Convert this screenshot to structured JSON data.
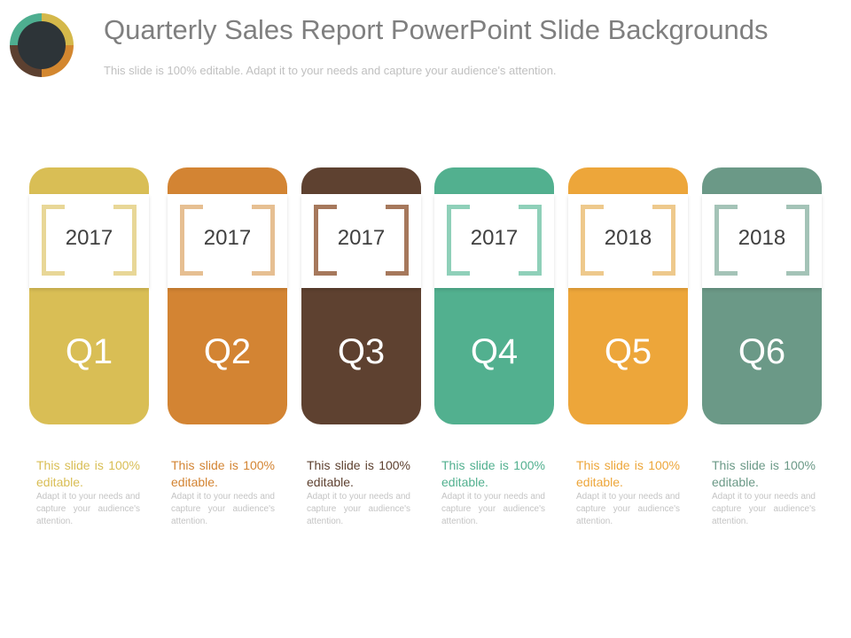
{
  "header": {
    "title": "Quarterly Sales Report PowerPoint Slide Backgrounds",
    "subtitle": "This slide is 100% editable. Adapt it to your needs and capture your audience's attention."
  },
  "logo": {
    "icon": "ring-logo-icon",
    "colors": [
      "#d4b84a",
      "#d3872f",
      "#5c4030",
      "#4eae90"
    ]
  },
  "cards": [
    {
      "quarter": "Q1",
      "year": "2017",
      "color": "#d9be55",
      "bracket_color": "#e8d797",
      "desc_lead": "This slide is 100% editable.",
      "desc_body": "Adapt it to your needs and capture your audience's attention.",
      "desc_color": "#d9be55"
    },
    {
      "quarter": "Q2",
      "year": "2017",
      "color": "#d38433",
      "bracket_color": "#e6bf92",
      "desc_lead": "This slide is 100% editable.",
      "desc_body": "Adapt it to your needs and capture your audience's attention.",
      "desc_color": "#d38433"
    },
    {
      "quarter": "Q3",
      "year": "2017",
      "color": "#5e4130",
      "bracket_color": "#a6785c",
      "desc_lead": "This slide is 100% editable.",
      "desc_body": "Adapt it to your needs and capture your audience's attention.",
      "desc_color": "#5e4130"
    },
    {
      "quarter": "Q4",
      "year": "2017",
      "color": "#52b08f",
      "bracket_color": "#8fd0b9",
      "desc_lead": "This slide is 100% editable.",
      "desc_body": "Adapt it to your needs and capture your audience's attention.",
      "desc_color": "#52b08f"
    },
    {
      "quarter": "Q5",
      "year": "2018",
      "color": "#eda63a",
      "bracket_color": "#eec98c",
      "desc_lead": "This slide is 100% editable.",
      "desc_body": "Adapt it to your needs and capture your audience's attention.",
      "desc_color": "#eda63a"
    },
    {
      "quarter": "Q6",
      "year": "2018",
      "color": "#6b9987",
      "bracket_color": "#a4c3b7",
      "desc_lead": "This slide is 100% editable.",
      "desc_body": "Adapt it to your needs and capture your audience's attention.",
      "desc_color": "#6b9987"
    }
  ]
}
